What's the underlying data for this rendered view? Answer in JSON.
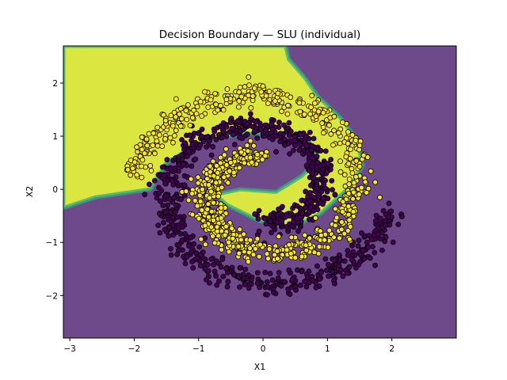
{
  "chart_data": {
    "type": "scatter",
    "title": "Decision Boundary — SLU (individual)",
    "xlabel": "X1",
    "ylabel": "X2",
    "xlim": [
      -3.1,
      3.0
    ],
    "ylim": [
      -2.8,
      2.7
    ],
    "xticks": [
      -3,
      -2,
      -1,
      0,
      1,
      2
    ],
    "yticks": [
      -2,
      -1,
      0,
      1,
      2
    ],
    "xtick_labels": [
      "−3",
      "−2",
      "−1",
      "0",
      "1",
      "2"
    ],
    "ytick_labels": [
      "−2",
      "−1",
      "0",
      "1",
      "2"
    ],
    "grid": false,
    "legend": "none",
    "background_regions": [
      {
        "class": 1,
        "color": "#dce641",
        "description_points": [
          [
            -3.1,
            2.7
          ],
          [
            0.35,
            2.7
          ],
          [
            0.4,
            2.45
          ],
          [
            0.65,
            2.1
          ],
          [
            0.85,
            1.75
          ],
          [
            1.2,
            1.35
          ],
          [
            1.45,
            0.95
          ],
          [
            1.55,
            0.45
          ],
          [
            1.35,
            0.05
          ],
          [
            0.9,
            -0.45
          ],
          [
            0.45,
            -0.72
          ],
          [
            -0.05,
            -0.6
          ],
          [
            -0.55,
            -0.3
          ],
          [
            -0.75,
            -0.1
          ],
          [
            -0.35,
            0.0
          ],
          [
            0.2,
            -0.05
          ],
          [
            0.6,
            0.25
          ],
          [
            0.85,
            0.55
          ],
          [
            0.7,
            0.95
          ],
          [
            0.3,
            1.05
          ],
          [
            -0.3,
            1.05
          ],
          [
            -0.95,
            0.9
          ],
          [
            -1.5,
            0.5
          ],
          [
            -1.75,
            0.0
          ],
          [
            -2.6,
            -0.15
          ],
          [
            -3.1,
            -0.35
          ]
        ]
      },
      {
        "class": 0,
        "color": "#6e4a8a"
      }
    ],
    "series": [
      {
        "name": "",
        "color": "#fde725",
        "arm": "outer_upper_spiral",
        "approx_points": 1400
      },
      {
        "name": "",
        "color": "#440154",
        "arm": "inner_lower_spiral",
        "approx_points": 1400
      }
    ]
  }
}
